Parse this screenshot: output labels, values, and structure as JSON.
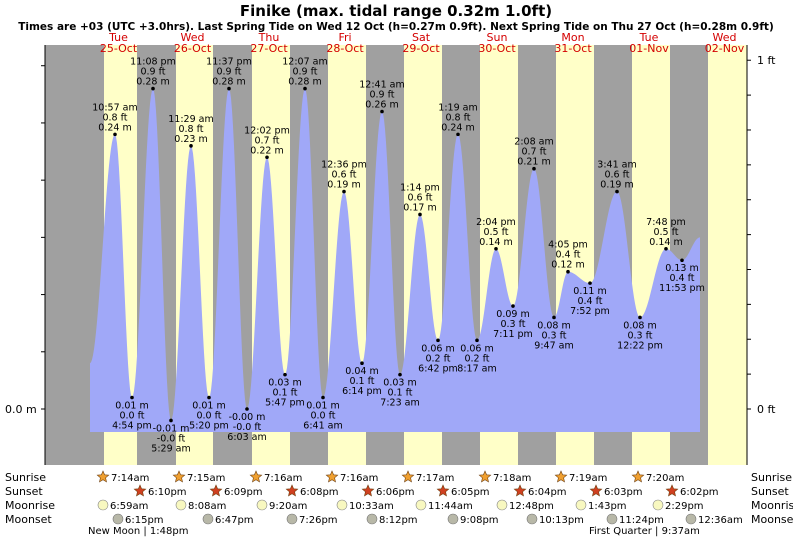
{
  "title": "Finike (max. tidal range 0.32m 1.0ft)",
  "subtitle": "Times are +03 (UTC +3.0hrs). Last Spring Tide on Wed 12 Oct (h=0.27m 0.9ft). Next Spring Tide on Thu 27 Oct (h=0.28m 0.9ft)",
  "colors": {
    "water": "#a0a8f8",
    "day": "#ffffc8",
    "night": "#a0a0a0",
    "daylabel": "#d40000",
    "sunrise": "#f0a030",
    "sunset": "#d04020",
    "moonrise": "#f8f8c0",
    "moonset": "#b8b8a8"
  },
  "chart_data": {
    "type": "area",
    "yaxis_left": {
      "label_0": "0.0 m",
      "ylim_m": [
        -0.03,
        0.32
      ]
    },
    "yaxis_right": {
      "label_top": "1 ft",
      "label_zero": "0 ft"
    },
    "days": [
      {
        "dow": "Tue",
        "date": "25-Oct",
        "rise": 14.0,
        "set": 47.0
      },
      {
        "dow": "Wed",
        "date": "26-Oct",
        "rise": 86.0,
        "set": 123.0
      },
      {
        "dow": "Thu",
        "date": "27-Oct",
        "rise": 162.0,
        "set": 200.0
      },
      {
        "dow": "Fri",
        "date": "28-Oct",
        "rise": 238.0,
        "set": 276.0
      },
      {
        "dow": "Sat",
        "date": "29-Oct",
        "rise": 314.0,
        "set": 352.0
      },
      {
        "dow": "Sun",
        "date": "30-Oct",
        "rise": 390.0,
        "set": 428.0
      },
      {
        "dow": "Mon",
        "date": "31-Oct",
        "rise": 466.0,
        "set": 504.0
      },
      {
        "dow": "Tue",
        "date": "01-Nov",
        "rise": 542.0,
        "set": 580.0
      },
      {
        "dow": "Wed",
        "date": "02-Nov",
        "rise": 618.0,
        "set": 655.0
      }
    ],
    "tides": [
      {
        "t": 0.0,
        "h": 0.04,
        "drawn": false
      },
      {
        "t": 25.0,
        "h": 0.24,
        "time": "10:57 am",
        "ft": "0.8 ft",
        "m": "0.24 m",
        "pos": "above"
      },
      {
        "t": 42.0,
        "h": 0.01,
        "time": "4:54 pm",
        "ft": "0.0 ft",
        "m": "0.01 m",
        "pos": "below"
      },
      {
        "t": 63.0,
        "h": 0.28,
        "time": "11:08 pm",
        "ft": "0.9 ft",
        "m": "0.28 m",
        "pos": "above"
      },
      {
        "t": 81.0,
        "h": -0.01,
        "time": "5:29 am",
        "ft": "-0.0 ft",
        "m": "-0.01 m",
        "pos": "below"
      },
      {
        "t": 101.0,
        "h": 0.23,
        "time": "11:29 am",
        "ft": "0.8 ft",
        "m": "0.23 m",
        "pos": "above"
      },
      {
        "t": 119.0,
        "h": 0.01,
        "time": "5:20 pm",
        "ft": "0.0 ft",
        "m": "0.01 m",
        "pos": "below"
      },
      {
        "t": 139.0,
        "h": 0.28,
        "time": "11:37 pm",
        "ft": "0.9 ft",
        "m": "0.28 m",
        "pos": "above"
      },
      {
        "t": 157.0,
        "h": -0.0,
        "time": "6:03 am",
        "ft": "-0.0 ft",
        "m": "-0.00 m",
        "pos": "below"
      },
      {
        "t": 177.0,
        "h": 0.22,
        "time": "12:02 pm",
        "ft": "0.7 ft",
        "m": "0.22 m",
        "pos": "above"
      },
      {
        "t": 195.0,
        "h": 0.03,
        "time": "5:47 pm",
        "ft": "0.1 ft",
        "m": "0.03 m",
        "pos": "below"
      },
      {
        "t": 215.0,
        "h": 0.28,
        "time": "12:07 am",
        "ft": "0.9 ft",
        "m": "0.28 m",
        "pos": "above"
      },
      {
        "t": 233.0,
        "h": 0.01,
        "time": "6:41 am",
        "ft": "0.0 ft",
        "m": "0.01 m",
        "pos": "below"
      },
      {
        "t": 254.0,
        "h": 0.19,
        "time": "12:36 pm",
        "ft": "0.6 ft",
        "m": "0.19 m",
        "pos": "above"
      },
      {
        "t": 272.0,
        "h": 0.04,
        "time": "6:14 pm",
        "ft": "0.1 ft",
        "m": "0.04 m",
        "pos": "below"
      },
      {
        "t": 292.0,
        "h": 0.26,
        "time": "12:41 am",
        "ft": "0.9 ft",
        "m": "0.26 m",
        "pos": "above"
      },
      {
        "t": 310.0,
        "h": 0.03,
        "time": "7:23 am",
        "ft": "0.1 ft",
        "m": "0.03 m",
        "pos": "below"
      },
      {
        "t": 330.0,
        "h": 0.17,
        "time": "1:14 pm",
        "ft": "0.6 ft",
        "m": "0.17 m",
        "pos": "above"
      },
      {
        "t": 348.0,
        "h": 0.06,
        "time": "6:42 pm",
        "ft": "0.2 ft",
        "m": "0.06 m",
        "pos": "below"
      },
      {
        "t": 368.0,
        "h": 0.24,
        "time": "1:19 am",
        "ft": "0.8 ft",
        "m": "0.24 m",
        "pos": "above"
      },
      {
        "t": 387.0,
        "h": 0.06,
        "time": "8:17 am",
        "ft": "0.2 ft",
        "m": "0.06 m",
        "pos": "below"
      },
      {
        "t": 406.0,
        "h": 0.14,
        "time": "2:04 pm",
        "ft": "0.5 ft",
        "m": "0.14 m",
        "pos": "above"
      },
      {
        "t": 423.0,
        "h": 0.09,
        "time": "7:11 pm",
        "ft": "0.3 ft",
        "m": "0.09 m",
        "pos": "below"
      },
      {
        "t": 444.0,
        "h": 0.21,
        "time": "2:08 am",
        "ft": "0.7 ft",
        "m": "0.21 m",
        "pos": "above"
      },
      {
        "t": 464.0,
        "h": 0.08,
        "time": "9:47 am",
        "ft": "0.3 ft",
        "m": "0.08 m",
        "pos": "below"
      },
      {
        "t": 478.0,
        "h": 0.12,
        "time": "4:05 pm",
        "ft": "0.4 ft",
        "m": "0.12 m",
        "pos": "above"
      },
      {
        "t": 500.0,
        "h": 0.11,
        "time": "7:52 pm",
        "ft": "0.4 ft",
        "m": "0.11 m",
        "pos": "below"
      },
      {
        "t": 527.0,
        "h": 0.19,
        "time": "3:41 am",
        "ft": "0.6 ft",
        "m": "0.19 m",
        "pos": "above"
      },
      {
        "t": 550.0,
        "h": 0.08,
        "time": "12:22 pm",
        "ft": "0.3 ft",
        "m": "0.08 m",
        "pos": "below"
      },
      {
        "t": 576.0,
        "h": 0.14,
        "time": "7:48 pm",
        "ft": "0.5 ft",
        "m": "0.14 m",
        "pos": "above"
      },
      {
        "t": 592.0,
        "h": 0.13,
        "time": "11:53 pm",
        "ft": "0.4 ft",
        "m": "0.13 m",
        "pos": "below"
      },
      {
        "t": 610.0,
        "h": 0.15,
        "drawn": false
      }
    ],
    "sunrise": [
      "7:14am",
      "7:15am",
      "7:16am",
      "7:16am",
      "7:17am",
      "7:18am",
      "7:19am",
      "7:20am"
    ],
    "sunset": [
      "6:10pm",
      "6:09pm",
      "6:08pm",
      "6:06pm",
      "6:05pm",
      "6:04pm",
      "6:03pm",
      "6:02pm"
    ],
    "moonrise": [
      "6:59am",
      "8:08am",
      "9:20am",
      "10:33am",
      "11:44am",
      "12:48pm",
      "1:43pm",
      "2:29pm"
    ],
    "moonset": [
      "6:15pm",
      "6:47pm",
      "7:26pm",
      "8:12pm",
      "9:08pm",
      "10:13pm",
      "11:24pm",
      "12:36am"
    ],
    "moon_phases": [
      "New Moon | 1:48pm",
      "First Quarter | 9:37am"
    ]
  },
  "row_labels": {
    "sunrise": "Sunrise",
    "sunset": "Sunset",
    "moonrise": "Moonrise",
    "moonset": "Moonset"
  }
}
